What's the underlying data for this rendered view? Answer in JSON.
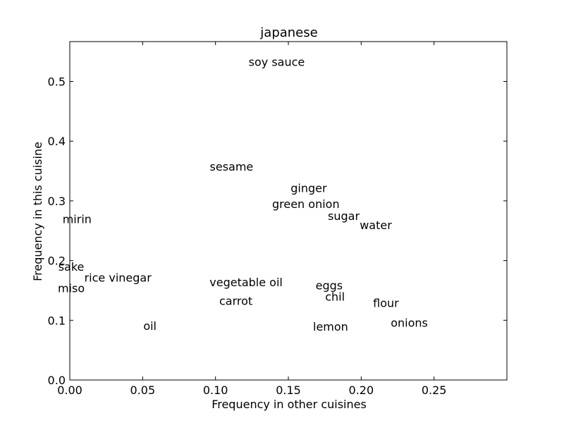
{
  "chart_data": {
    "type": "scatter",
    "title": "japanese",
    "xlabel": "Frequency in other cuisines",
    "ylabel": "Frequency in this cuisine",
    "xlim": [
      0.0,
      0.3
    ],
    "ylim": [
      0.0,
      0.5667
    ],
    "xticks": [
      0.0,
      0.05,
      0.1,
      0.15,
      0.2,
      0.25
    ],
    "xtick_labels": [
      "0.00",
      "0.05",
      "0.10",
      "0.15",
      "0.20",
      "0.25"
    ],
    "yticks": [
      0.0,
      0.1,
      0.2,
      0.3,
      0.4,
      0.5
    ],
    "ytick_labels": [
      "0.0",
      "0.1",
      "0.2",
      "0.3",
      "0.4",
      "0.5"
    ],
    "grid": false,
    "points": [
      {
        "label": "soy sauce",
        "x": 0.142,
        "y": 0.533
      },
      {
        "label": "sesame",
        "x": 0.111,
        "y": 0.358
      },
      {
        "label": "ginger",
        "x": 0.164,
        "y": 0.322
      },
      {
        "label": "green onion",
        "x": 0.162,
        "y": 0.295
      },
      {
        "label": "mirin",
        "x": 0.005,
        "y": 0.27
      },
      {
        "label": "sugar",
        "x": 0.188,
        "y": 0.275
      },
      {
        "label": "water",
        "x": 0.21,
        "y": 0.26
      },
      {
        "label": "sake",
        "x": 0.001,
        "y": 0.19
      },
      {
        "label": "rice vinegar",
        "x": 0.033,
        "y": 0.172
      },
      {
        "label": "miso",
        "x": 0.001,
        "y": 0.154
      },
      {
        "label": "vegetable oil",
        "x": 0.121,
        "y": 0.164
      },
      {
        "label": "eggs",
        "x": 0.178,
        "y": 0.159
      },
      {
        "label": "chil",
        "x": 0.182,
        "y": 0.14
      },
      {
        "label": "carrot",
        "x": 0.114,
        "y": 0.133
      },
      {
        "label": "flour",
        "x": 0.217,
        "y": 0.129
      },
      {
        "label": "onions",
        "x": 0.233,
        "y": 0.096
      },
      {
        "label": "oil",
        "x": 0.055,
        "y": 0.091
      },
      {
        "label": "lemon",
        "x": 0.179,
        "y": 0.09
      }
    ]
  }
}
